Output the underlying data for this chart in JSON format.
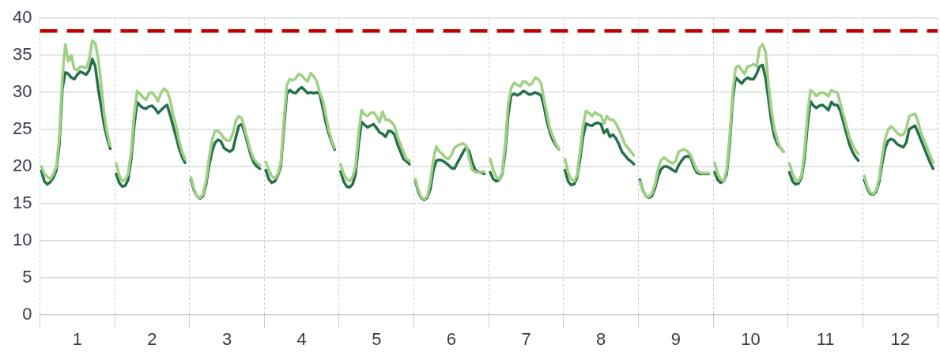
{
  "chart_data": {
    "type": "line",
    "ylim": [
      0,
      40
    ],
    "yticks": [
      0,
      5,
      10,
      15,
      20,
      25,
      30,
      35,
      40
    ],
    "xlim": [
      0,
      12
    ],
    "xticks": [
      {
        "value": 0,
        "label": null
      },
      {
        "value": 0.5,
        "label": "1"
      },
      {
        "value": 1,
        "label": null
      },
      {
        "value": 1.5,
        "label": "2"
      },
      {
        "value": 2,
        "label": null
      },
      {
        "value": 2.5,
        "label": "3"
      },
      {
        "value": 3,
        "label": null
      },
      {
        "value": 3.5,
        "label": "4"
      },
      {
        "value": 4,
        "label": null
      },
      {
        "value": 4.5,
        "label": "5"
      },
      {
        "value": 5,
        "label": null
      },
      {
        "value": 5.5,
        "label": "6"
      },
      {
        "value": 6,
        "label": null
      },
      {
        "value": 6.5,
        "label": "7"
      },
      {
        "value": 7,
        "label": null
      },
      {
        "value": 7.5,
        "label": "8"
      },
      {
        "value": 8,
        "label": null
      },
      {
        "value": 8.5,
        "label": "9"
      },
      {
        "value": 9,
        "label": null
      },
      {
        "value": 9.5,
        "label": "10"
      },
      {
        "value": 10,
        "label": null
      },
      {
        "value": 10.5,
        "label": "11"
      },
      {
        "value": 11,
        "label": null
      },
      {
        "value": 11.5,
        "label": "12"
      },
      {
        "value": 12,
        "label": null
      }
    ],
    "grid": true,
    "legend": false,
    "marker": "none",
    "line_style": "solid",
    "ref_lines": [
      {
        "axis": "y",
        "value": 38.3,
        "color": "#c00000",
        "line_style": "dashed"
      }
    ],
    "x": [
      0.02,
      0.06,
      0.1,
      0.14,
      0.18,
      0.22,
      0.26,
      0.3,
      0.34,
      0.38,
      0.42,
      0.46,
      0.5,
      0.54,
      0.58,
      0.62,
      0.66,
      0.7,
      0.74,
      0.78,
      0.82,
      0.86,
      0.9,
      0.94,
      0.98,
      1.02,
      1.06,
      1.1,
      1.14,
      1.18,
      1.22,
      1.26,
      1.3,
      1.34,
      1.38,
      1.42,
      1.46,
      1.5,
      1.54,
      1.58,
      1.62,
      1.66,
      1.7,
      1.74,
      1.78,
      1.82,
      1.86,
      1.9,
      1.94,
      1.98,
      2.02,
      2.06,
      2.1,
      2.14,
      2.18,
      2.22,
      2.26,
      2.3,
      2.34,
      2.38,
      2.42,
      2.46,
      2.5,
      2.54,
      2.58,
      2.62,
      2.66,
      2.7,
      2.74,
      2.78,
      2.82,
      2.86,
      2.9,
      2.94,
      2.98,
      3.02,
      3.06,
      3.1,
      3.14,
      3.18,
      3.22,
      3.26,
      3.3,
      3.34,
      3.38,
      3.42,
      3.46,
      3.5,
      3.54,
      3.58,
      3.62,
      3.66,
      3.7,
      3.74,
      3.78,
      3.82,
      3.86,
      3.9,
      3.94,
      3.98,
      4.02,
      4.06,
      4.1,
      4.14,
      4.18,
      4.22,
      4.26,
      4.3,
      4.34,
      4.38,
      4.42,
      4.46,
      4.5,
      4.54,
      4.58,
      4.62,
      4.66,
      4.7,
      4.74,
      4.78,
      4.82,
      4.86,
      4.9,
      4.94,
      4.98,
      5.02,
      5.06,
      5.1,
      5.14,
      5.18,
      5.22,
      5.26,
      5.3,
      5.34,
      5.38,
      5.42,
      5.46,
      5.5,
      5.54,
      5.58,
      5.62,
      5.66,
      5.7,
      5.74,
      5.78,
      5.82,
      5.86,
      5.9,
      5.94,
      5.98,
      6.02,
      6.06,
      6.1,
      6.14,
      6.18,
      6.22,
      6.26,
      6.3,
      6.34,
      6.38,
      6.42,
      6.46,
      6.5,
      6.54,
      6.58,
      6.62,
      6.66,
      6.7,
      6.74,
      6.78,
      6.82,
      6.86,
      6.9,
      6.94,
      6.98,
      7.02,
      7.06,
      7.1,
      7.14,
      7.18,
      7.22,
      7.26,
      7.3,
      7.34,
      7.38,
      7.42,
      7.46,
      7.5,
      7.54,
      7.58,
      7.62,
      7.66,
      7.7,
      7.74,
      7.78,
      7.82,
      7.86,
      7.9,
      7.94,
      7.98,
      8.02,
      8.06,
      8.1,
      8.14,
      8.18,
      8.22,
      8.26,
      8.3,
      8.34,
      8.38,
      8.42,
      8.46,
      8.5,
      8.54,
      8.58,
      8.62,
      8.66,
      8.7,
      8.74,
      8.78,
      8.82,
      8.86,
      8.9,
      8.94,
      8.98,
      9.02,
      9.06,
      9.1,
      9.14,
      9.18,
      9.22,
      9.26,
      9.3,
      9.34,
      9.38,
      9.42,
      9.46,
      9.5,
      9.54,
      9.58,
      9.62,
      9.66,
      9.7,
      9.74,
      9.78,
      9.82,
      9.86,
      9.9,
      9.94,
      9.98,
      10.02,
      10.06,
      10.1,
      10.14,
      10.18,
      10.22,
      10.26,
      10.3,
      10.34,
      10.38,
      10.42,
      10.46,
      10.5,
      10.54,
      10.58,
      10.62,
      10.66,
      10.7,
      10.74,
      10.78,
      10.82,
      10.86,
      10.9,
      10.94,
      10.98,
      11.02,
      11.06,
      11.1,
      11.14,
      11.18,
      11.22,
      11.26,
      11.3,
      11.34,
      11.38,
      11.42,
      11.46,
      11.5,
      11.54,
      11.58,
      11.62,
      11.66,
      11.7,
      11.74,
      11.78,
      11.82,
      11.86,
      11.9,
      11.94
    ],
    "series": [
      {
        "color": "#9fd083",
        "values": [
          20.0,
          19.0,
          18.6,
          18.3,
          19.0,
          20.0,
          24,
          32,
          36.5,
          34.2,
          35.0,
          33.2,
          33.0,
          33.5,
          33.4,
          33.3,
          34.5,
          37.0,
          36.6,
          34.5,
          31,
          27,
          24.5,
          22.8,
          null,
          20.4,
          18.8,
          18.0,
          18.2,
          19.0,
          22,
          27,
          30.2,
          29.8,
          29.3,
          29.0,
          29.9,
          30.0,
          29.5,
          28.8,
          30.0,
          30.5,
          30.2,
          29,
          27,
          25.5,
          23.5,
          22,
          21.0,
          null,
          18.5,
          17.0,
          16.0,
          15.8,
          16.2,
          18,
          21,
          23.5,
          24.8,
          24.8,
          24.4,
          23.8,
          23.5,
          23.5,
          24.5,
          26.2,
          26.8,
          26.5,
          25,
          23.5,
          22,
          21,
          20.5,
          20.2,
          null,
          20.6,
          19.5,
          18.7,
          18.4,
          19.0,
          20.5,
          26,
          31.0,
          31.8,
          31.6,
          31.9,
          32.5,
          32.3,
          31.8,
          31.5,
          32.6,
          32.2,
          31.5,
          30.0,
          29,
          27,
          25,
          23.5,
          22.5,
          null,
          20.3,
          19.0,
          18.3,
          18.0,
          18.6,
          20,
          24.5,
          27.6,
          27.0,
          26.8,
          27.2,
          27.3,
          26.8,
          26.0,
          27.4,
          26.3,
          26.3,
          26.0,
          25.5,
          24,
          23,
          22,
          21.0,
          20.8,
          null,
          18.3,
          16.8,
          15.8,
          15.6,
          16.0,
          18,
          21,
          22.7,
          22.0,
          21.7,
          21.2,
          21.0,
          21.5,
          22.5,
          22.8,
          23.0,
          23.1,
          22.8,
          21,
          19.5,
          19.3,
          19.2,
          19.3,
          19.3,
          null,
          21.0,
          19.5,
          18.6,
          18.3,
          19.2,
          23,
          28.5,
          30.6,
          31.3,
          31.0,
          30.8,
          31.5,
          31.4,
          31.0,
          31.2,
          32.0,
          31.8,
          31.2,
          29,
          27,
          25,
          24,
          23,
          22.3,
          null,
          21.0,
          19.2,
          18.3,
          18.0,
          18.8,
          22,
          25.5,
          27.5,
          27.2,
          26.8,
          27.3,
          27.0,
          26.9,
          25.8,
          26.8,
          26.3,
          26.3,
          25.8,
          25,
          24,
          23,
          22.5,
          22,
          21.5,
          null,
          18.0,
          16.7,
          16.0,
          15.9,
          16.3,
          17.5,
          19.5,
          20.8,
          21.2,
          20.9,
          20.6,
          20.4,
          20.8,
          22.0,
          22.2,
          22.3,
          22.0,
          21.5,
          20.5,
          19.5,
          19.2,
          19.1,
          19.1,
          19.1,
          null,
          20.5,
          19.0,
          18.3,
          18.0,
          19.5,
          24,
          30,
          33.3,
          33.6,
          33.0,
          32.5,
          33.5,
          33.6,
          33.8,
          33.5,
          36.0,
          36.5,
          35.5,
          31,
          27.5,
          25,
          23.5,
          22.5,
          22.0,
          null,
          20.4,
          19.0,
          18.2,
          18.0,
          18.8,
          22,
          27,
          30.3,
          30.0,
          29.5,
          29.9,
          30.0,
          29.8,
          29.5,
          30.3,
          30.1,
          30.0,
          28.5,
          27,
          25.5,
          24,
          23,
          22.2,
          21.7,
          null,
          18.7,
          17.3,
          16.5,
          16.3,
          16.8,
          18.5,
          21.5,
          23.8,
          25.0,
          25.4,
          25.0,
          24.5,
          24.2,
          24.3,
          25.0,
          26.8,
          27.0,
          27.1,
          26,
          24.5,
          23.5,
          22.5,
          21.5,
          20.5
        ]
      },
      {
        "color": "#23704a",
        "values": [
          19.4,
          18.0,
          17.6,
          17.9,
          18.5,
          19.5,
          23,
          30.5,
          32.7,
          32.5,
          32.0,
          31.8,
          32.4,
          32.8,
          32.6,
          32.4,
          33.0,
          34.5,
          33.5,
          30.5,
          28,
          25.5,
          23.8,
          22.4,
          null,
          19.0,
          17.8,
          17.3,
          17.4,
          18.2,
          21,
          25.5,
          28.7,
          28.2,
          27.9,
          27.8,
          28.1,
          28.2,
          27.8,
          27.2,
          27.6,
          28.0,
          28.3,
          27.0,
          25.5,
          24,
          22.5,
          21.3,
          20.5,
          null,
          18.2,
          16.8,
          16.0,
          15.7,
          16.0,
          17.5,
          20,
          22,
          23.2,
          23.6,
          23.4,
          22.5,
          22.2,
          22.0,
          22.3,
          24,
          25.5,
          25.7,
          24.5,
          23,
          21.5,
          20.5,
          20,
          19.7,
          null,
          19.5,
          18.3,
          17.8,
          18.0,
          18.8,
          20,
          25,
          29.8,
          30.3,
          30.0,
          29.9,
          30.4,
          30.7,
          30.3,
          29.9,
          30.0,
          29.9,
          30.0,
          29.8,
          28,
          26,
          24.5,
          23.3,
          22.3,
          null,
          19.3,
          18.0,
          17.3,
          17.2,
          17.6,
          19,
          23,
          26.0,
          25.6,
          25.3,
          25.5,
          25.7,
          25.2,
          24.6,
          24.4,
          24.0,
          24.8,
          24.7,
          24.3,
          23,
          22,
          21,
          20.7,
          20.3,
          null,
          18.0,
          16.5,
          15.7,
          15.5,
          15.8,
          17,
          19.5,
          20.8,
          20.9,
          20.8,
          20.5,
          20.2,
          19.8,
          19.7,
          20.5,
          21.2,
          22.0,
          22.6,
          22.0,
          20.5,
          19.5,
          19.3,
          19.2,
          19.0,
          null,
          19.2,
          18.3,
          18.0,
          18.2,
          19,
          22,
          27,
          29.6,
          29.8,
          29.6,
          29.8,
          30.2,
          30.0,
          29.7,
          29.8,
          30.0,
          29.8,
          29.6,
          28,
          26,
          24.5,
          23.5,
          22.8,
          22.3,
          null,
          19.5,
          18.0,
          17.5,
          17.6,
          18.5,
          21,
          24,
          25.8,
          25.6,
          25.5,
          25.8,
          25.9,
          25.7,
          24.5,
          25.0,
          24.0,
          24.3,
          23.8,
          23,
          22,
          21.5,
          21,
          20.7,
          20.3,
          null,
          18.2,
          16.8,
          16.0,
          15.8,
          16.0,
          17,
          18.5,
          19.6,
          20.0,
          20.0,
          19.8,
          19.5,
          19.3,
          20.2,
          20.8,
          21.3,
          21.4,
          21.2,
          20,
          19.2,
          19.0,
          19.0,
          19.0,
          19.0,
          null,
          19.2,
          18.2,
          17.8,
          18.0,
          19,
          23,
          29,
          32.0,
          31.6,
          31.2,
          31.7,
          32.0,
          31.8,
          31.8,
          32.5,
          33.5,
          33.7,
          32,
          29,
          26,
          24,
          23,
          22.5,
          22.0,
          null,
          19.2,
          18.0,
          17.6,
          17.7,
          18.5,
          21,
          25.5,
          28.8,
          28.2,
          27.9,
          28.2,
          28.3,
          28.0,
          27.6,
          28.7,
          28.3,
          28.3,
          27.5,
          26,
          24.5,
          23,
          22,
          21.3,
          20.8,
          null,
          18.2,
          17.0,
          16.3,
          16.2,
          16.6,
          18,
          20.5,
          22.5,
          23.5,
          23.7,
          23.5,
          23.0,
          22.8,
          22.6,
          23.2,
          25.0,
          25.3,
          25.5,
          24.5,
          23.5,
          22.5,
          21.5,
          20.5,
          19.7
        ]
      }
    ]
  }
}
